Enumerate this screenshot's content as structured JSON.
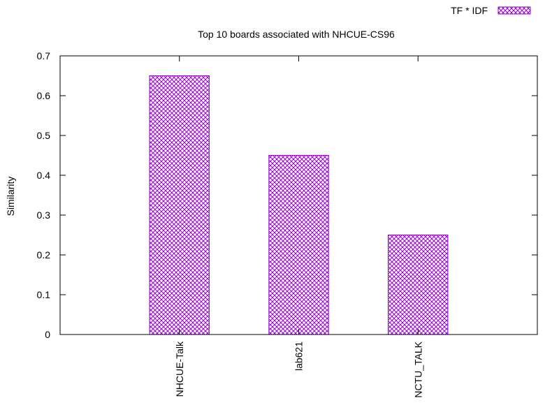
{
  "chart_data": {
    "type": "bar",
    "title": "Top 10 boards associated with NHCUE-CS96",
    "xlabel": "",
    "ylabel": "Similarity",
    "categories": [
      "NHCUE-Talk",
      "lab621",
      "NCTU_TALK"
    ],
    "series": [
      {
        "name": "TF * IDF",
        "values": [
          0.65,
          0.45,
          0.25
        ]
      }
    ],
    "ylim": [
      0,
      0.7
    ],
    "yticks": [
      "0",
      "0.1",
      "0.2",
      "0.3",
      "0.4",
      "0.5",
      "0.6",
      "0.7"
    ],
    "grid": false,
    "legend_position": "top-right",
    "bar_color": "#9400d3",
    "bar_pattern": "crosshatch"
  }
}
